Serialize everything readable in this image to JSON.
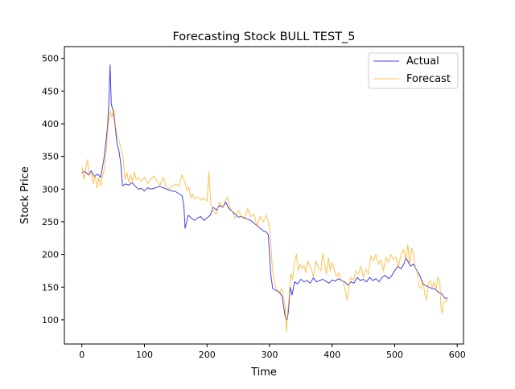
{
  "chart_data": {
    "type": "line",
    "title": "Forecasting Stock BULL TEST_5",
    "xlabel": "Time",
    "ylabel": "Stock Price",
    "xlim": [
      -28,
      610
    ],
    "ylim": [
      63,
      518
    ],
    "x_ticks": [
      0,
      100,
      200,
      300,
      400,
      500,
      600
    ],
    "y_ticks": [
      100,
      150,
      200,
      250,
      300,
      350,
      400,
      450,
      500
    ],
    "grid": false,
    "legend": {
      "location": "top-right",
      "entries": [
        "Actual",
        "Forecast"
      ]
    },
    "series": [
      {
        "name": "Actual",
        "color": "#0000dd",
        "points": [
          [
            0,
            325
          ],
          [
            5,
            327
          ],
          [
            10,
            322
          ],
          [
            15,
            328
          ],
          [
            20,
            319
          ],
          [
            25,
            323
          ],
          [
            30,
            318
          ],
          [
            35,
            345
          ],
          [
            38,
            368
          ],
          [
            41,
            395
          ],
          [
            43,
            430
          ],
          [
            45,
            490
          ],
          [
            47,
            430
          ],
          [
            50,
            420
          ],
          [
            53,
            398
          ],
          [
            56,
            370
          ],
          [
            59,
            360
          ],
          [
            62,
            340
          ],
          [
            65,
            305
          ],
          [
            70,
            308
          ],
          [
            75,
            306
          ],
          [
            80,
            310
          ],
          [
            85,
            305
          ],
          [
            90,
            300
          ],
          [
            95,
            301
          ],
          [
            100,
            297
          ],
          [
            105,
            302
          ],
          [
            110,
            300
          ],
          [
            115,
            301
          ],
          [
            120,
            303
          ],
          [
            125,
            304
          ],
          [
            130,
            302
          ],
          [
            135,
            300
          ],
          [
            140,
            298
          ],
          [
            145,
            297
          ],
          [
            150,
            296
          ],
          [
            155,
            293
          ],
          [
            160,
            290
          ],
          [
            163,
            275
          ],
          [
            165,
            240
          ],
          [
            170,
            260
          ],
          [
            175,
            256
          ],
          [
            180,
            252
          ],
          [
            185,
            256
          ],
          [
            190,
            258
          ],
          [
            195,
            252
          ],
          [
            200,
            256
          ],
          [
            205,
            260
          ],
          [
            210,
            272
          ],
          [
            215,
            268
          ],
          [
            220,
            275
          ],
          [
            225,
            272
          ],
          [
            230,
            280
          ],
          [
            235,
            270
          ],
          [
            240,
            266
          ],
          [
            245,
            262
          ],
          [
            250,
            257
          ],
          [
            255,
            258
          ],
          [
            260,
            256
          ],
          [
            265,
            254
          ],
          [
            270,
            252
          ],
          [
            275,
            248
          ],
          [
            280,
            244
          ],
          [
            285,
            240
          ],
          [
            290,
            236
          ],
          [
            295,
            234
          ],
          [
            298,
            230
          ],
          [
            300,
            200
          ],
          [
            302,
            168
          ],
          [
            305,
            148
          ],
          [
            310,
            145
          ],
          [
            315,
            143
          ],
          [
            320,
            136
          ],
          [
            325,
            105
          ],
          [
            328,
            100
          ],
          [
            330,
            112
          ],
          [
            333,
            150
          ],
          [
            336,
            138
          ],
          [
            340,
            158
          ],
          [
            345,
            155
          ],
          [
            350,
            162
          ],
          [
            355,
            158
          ],
          [
            360,
            160
          ],
          [
            365,
            156
          ],
          [
            370,
            164
          ],
          [
            375,
            158
          ],
          [
            380,
            160
          ],
          [
            385,
            162
          ],
          [
            390,
            159
          ],
          [
            395,
            156
          ],
          [
            400,
            161
          ],
          [
            405,
            159
          ],
          [
            410,
            163
          ],
          [
            415,
            160
          ],
          [
            420,
            158
          ],
          [
            425,
            153
          ],
          [
            430,
            158
          ],
          [
            435,
            156
          ],
          [
            440,
            165
          ],
          [
            445,
            160
          ],
          [
            450,
            162
          ],
          [
            455,
            158
          ],
          [
            460,
            165
          ],
          [
            465,
            160
          ],
          [
            470,
            163
          ],
          [
            475,
            158
          ],
          [
            480,
            165
          ],
          [
            485,
            168
          ],
          [
            490,
            163
          ],
          [
            495,
            167
          ],
          [
            500,
            175
          ],
          [
            505,
            182
          ],
          [
            510,
            178
          ],
          [
            515,
            186
          ],
          [
            518,
            195
          ],
          [
            522,
            188
          ],
          [
            525,
            182
          ],
          [
            530,
            185
          ],
          [
            535,
            176
          ],
          [
            540,
            168
          ],
          [
            545,
            155
          ],
          [
            550,
            152
          ],
          [
            555,
            150
          ],
          [
            560,
            148
          ],
          [
            565,
            147
          ],
          [
            570,
            142
          ],
          [
            575,
            140
          ],
          [
            580,
            133
          ],
          [
            585,
            133
          ]
        ]
      },
      {
        "name": "Forecast",
        "color": "#ffa500",
        "points": [
          [
            0,
            335
          ],
          [
            3,
            315
          ],
          [
            6,
            330
          ],
          [
            9,
            345
          ],
          [
            12,
            320
          ],
          [
            15,
            325
          ],
          [
            18,
            308
          ],
          [
            21,
            322
          ],
          [
            24,
            302
          ],
          [
            27,
            318
          ],
          [
            30,
            305
          ],
          [
            33,
            320
          ],
          [
            36,
            332
          ],
          [
            39,
            360
          ],
          [
            42,
            398
          ],
          [
            45,
            420
          ],
          [
            48,
            410
          ],
          [
            51,
            422
          ],
          [
            54,
            395
          ],
          [
            57,
            378
          ],
          [
            60,
            372
          ],
          [
            63,
            362
          ],
          [
            66,
            345
          ],
          [
            69,
            315
          ],
          [
            72,
            325
          ],
          [
            75,
            310
          ],
          [
            78,
            322
          ],
          [
            81,
            312
          ],
          [
            84,
            326
          ],
          [
            87,
            314
          ],
          [
            90,
            318
          ],
          [
            95,
            312
          ],
          [
            100,
            318
          ],
          [
            105,
            308
          ],
          [
            110,
            315
          ],
          [
            115,
            320
          ],
          [
            120,
            312
          ],
          [
            125,
            306
          ],
          [
            130,
            318
          ],
          [
            135,
            302
          ],
          [
            140,
            300
          ],
          [
            145,
            305
          ],
          [
            150,
            308
          ],
          [
            155,
            304
          ],
          [
            160,
            322
          ],
          [
            165,
            310
          ],
          [
            168,
            298
          ],
          [
            171,
            303
          ],
          [
            174,
            287
          ],
          [
            177,
            292
          ],
          [
            180,
            285
          ],
          [
            185,
            288
          ],
          [
            190,
            283
          ],
          [
            195,
            286
          ],
          [
            200,
            282
          ],
          [
            203,
            326
          ],
          [
            206,
            278
          ],
          [
            210,
            266
          ],
          [
            215,
            262
          ],
          [
            220,
            280
          ],
          [
            225,
            272
          ],
          [
            230,
            284
          ],
          [
            233,
            288
          ],
          [
            236,
            273
          ],
          [
            240,
            266
          ],
          [
            245,
            255
          ],
          [
            250,
            268
          ],
          [
            255,
            258
          ],
          [
            260,
            254
          ],
          [
            265,
            270
          ],
          [
            270,
            258
          ],
          [
            275,
            262
          ],
          [
            280,
            243
          ],
          [
            285,
            258
          ],
          [
            290,
            250
          ],
          [
            295,
            260
          ],
          [
            298,
            250
          ],
          [
            301,
            232
          ],
          [
            304,
            185
          ],
          [
            307,
            160
          ],
          [
            310,
            150
          ],
          [
            315,
            140
          ],
          [
            320,
            148
          ],
          [
            325,
            120
          ],
          [
            327,
            82
          ],
          [
            329,
            112
          ],
          [
            331,
            132
          ],
          [
            334,
            170
          ],
          [
            337,
            162
          ],
          [
            340,
            190
          ],
          [
            343,
            200
          ],
          [
            346,
            175
          ],
          [
            349,
            185
          ],
          [
            352,
            178
          ],
          [
            355,
            183
          ],
          [
            358,
            172
          ],
          [
            361,
            190
          ],
          [
            364,
            182
          ],
          [
            367,
            178
          ],
          [
            370,
            165
          ],
          [
            374,
            190
          ],
          [
            378,
            180
          ],
          [
            382,
            175
          ],
          [
            385,
            202
          ],
          [
            388,
            185
          ],
          [
            391,
            170
          ],
          [
            394,
            195
          ],
          [
            397,
            175
          ],
          [
            400,
            188
          ],
          [
            403,
            178
          ],
          [
            407,
            166
          ],
          [
            411,
            172
          ],
          [
            415,
            160
          ],
          [
            418,
            158
          ],
          [
            421,
            145
          ],
          [
            424,
            130
          ],
          [
            427,
            150
          ],
          [
            430,
            165
          ],
          [
            434,
            160
          ],
          [
            438,
            175
          ],
          [
            442,
            170
          ],
          [
            446,
            182
          ],
          [
            450,
            165
          ],
          [
            454,
            178
          ],
          [
            458,
            170
          ],
          [
            462,
            198
          ],
          [
            466,
            190
          ],
          [
            470,
            200
          ],
          [
            474,
            185
          ],
          [
            478,
            192
          ],
          [
            482,
            175
          ],
          [
            486,
            196
          ],
          [
            490,
            188
          ],
          [
            494,
            200
          ],
          [
            498,
            192
          ],
          [
            502,
            196
          ],
          [
            506,
            180
          ],
          [
            510,
            200
          ],
          [
            514,
            208
          ],
          [
            518,
            192
          ],
          [
            521,
            215
          ],
          [
            524,
            185
          ],
          [
            527,
            210
          ],
          [
            530,
            200
          ],
          [
            533,
            180
          ],
          [
            536,
            175
          ],
          [
            539,
            150
          ],
          [
            542,
            148
          ],
          [
            545,
            160
          ],
          [
            548,
            140
          ],
          [
            551,
            130
          ],
          [
            554,
            155
          ],
          [
            557,
            160
          ],
          [
            560,
            150
          ],
          [
            563,
            158
          ],
          [
            566,
            145
          ],
          [
            569,
            165
          ],
          [
            572,
            160
          ],
          [
            574,
            120
          ],
          [
            576,
            110
          ],
          [
            578,
            125
          ],
          [
            581,
            130
          ],
          [
            585,
            128
          ]
        ]
      }
    ]
  }
}
